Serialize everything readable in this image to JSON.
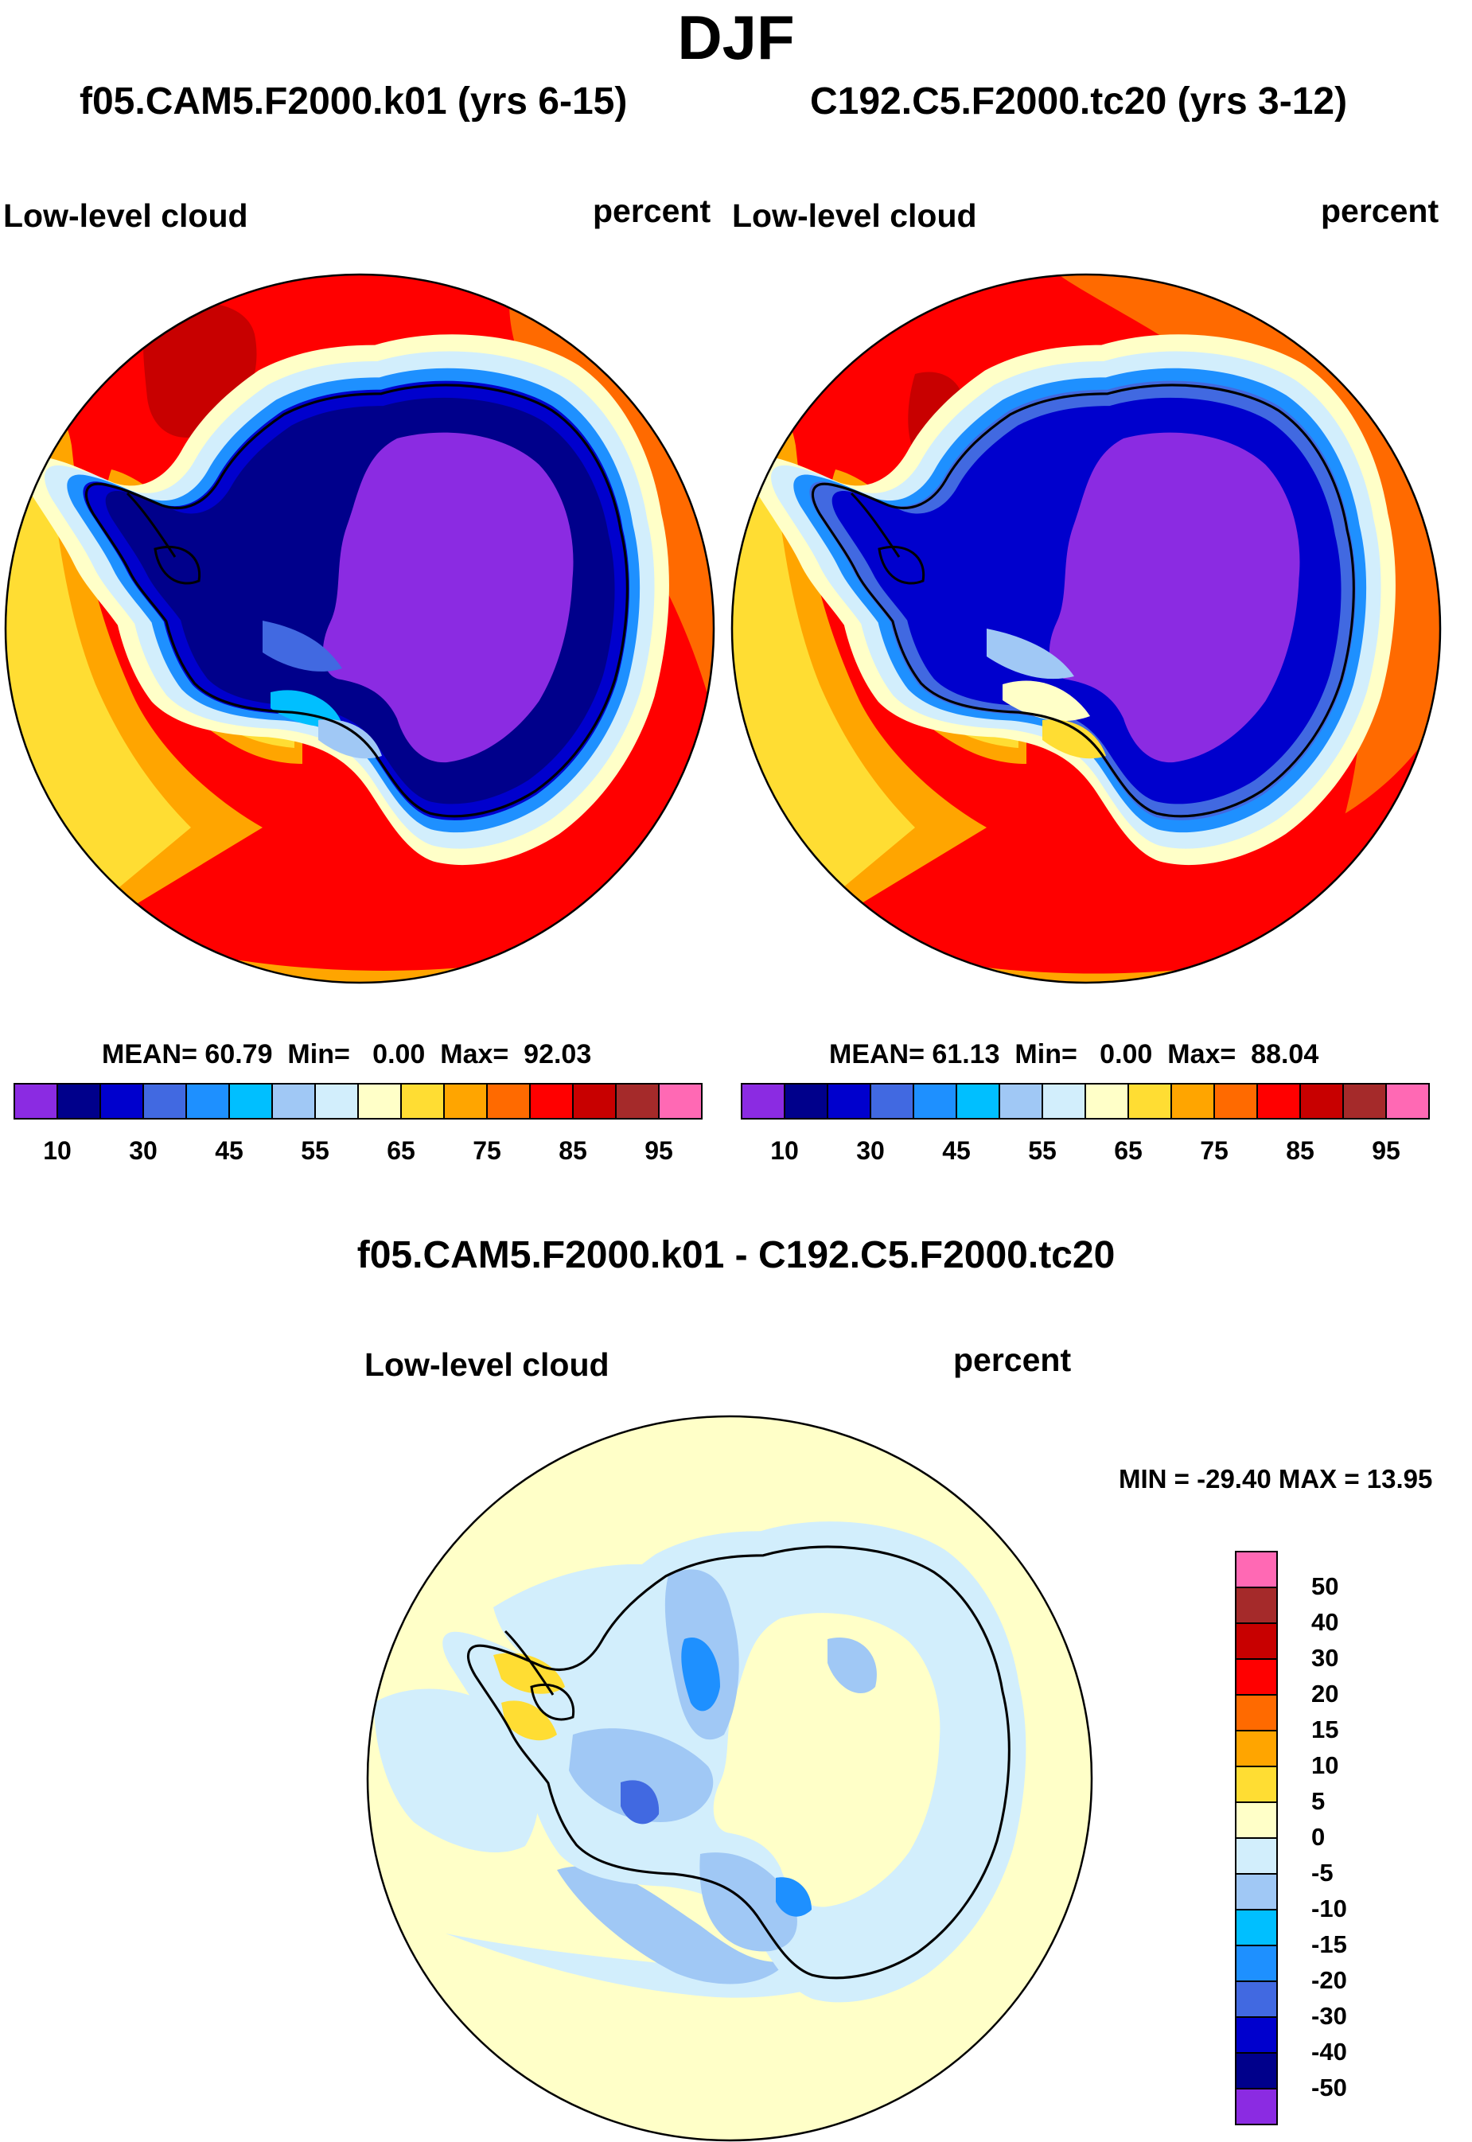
{
  "title": "DJF",
  "panels": [
    {
      "case_name": "f05.CAM5.F2000.k01 (yrs 6-15)",
      "variable": "Low-level cloud",
      "units": "percent",
      "stats": {
        "mean_label": "MEAN=",
        "mean": "60.79",
        "min_label": "Min=",
        "min": "0.00",
        "max_label": "Max=",
        "max": "92.03"
      }
    },
    {
      "case_name": "C192.C5.F2000.tc20 (yrs 3-12)",
      "variable": "Low-level cloud",
      "units": "percent",
      "stats": {
        "mean_label": "MEAN=",
        "mean": "61.13",
        "min_label": "Min=",
        "min": "0.00",
        "max_label": "Max=",
        "max": "88.04"
      }
    }
  ],
  "colorbar_main": {
    "colors": [
      "#8b2be2",
      "#00008b",
      "#0000cd",
      "#4169e1",
      "#1e90ff",
      "#00bfff",
      "#a0c8f5",
      "#d2eefc",
      "#ffffc8",
      "#ffdd33",
      "#ffa500",
      "#ff6a00",
      "#ff0000",
      "#c80000",
      "#a52a2a",
      "#ff69b4"
    ],
    "tick_labels": [
      "10",
      "30",
      "45",
      "55",
      "65",
      "75",
      "85",
      "95"
    ]
  },
  "diff_panel": {
    "title": "f05.CAM5.F2000.k01 - C192.C5.F2000.tc20",
    "variable": "Low-level cloud",
    "units": "percent",
    "minmax": "MIN = -29.40 MAX =  13.95",
    "colorbar": {
      "colors": [
        "#ff69b4",
        "#a52a2a",
        "#c80000",
        "#ff0000",
        "#ff6a00",
        "#ffa500",
        "#ffdd33",
        "#ffffc8",
        "#d2eefc",
        "#a0c8f5",
        "#00bfff",
        "#1e90ff",
        "#4169e1",
        "#0000cd",
        "#00008b",
        "#8b2be2"
      ],
      "tick_labels": [
        "50",
        "40",
        "30",
        "20",
        "15",
        "10",
        "5",
        "0",
        "-5",
        "-10",
        "-15",
        "-20",
        "-30",
        "-40",
        "-50"
      ]
    }
  }
}
